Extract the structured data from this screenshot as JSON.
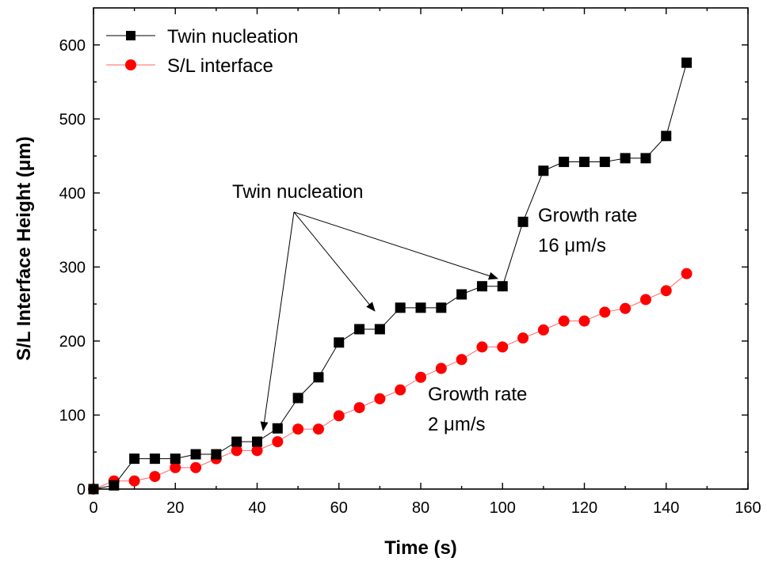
{
  "chart_data": {
    "type": "line",
    "xlabel": "Time (s)",
    "ylabel": "S/L Interface Height (μm)",
    "xlim": [
      0,
      160
    ],
    "ylim": [
      0,
      650
    ],
    "xticks": [
      0,
      20,
      40,
      60,
      80,
      100,
      120,
      140,
      160
    ],
    "yticks": [
      0,
      100,
      200,
      300,
      400,
      500,
      600
    ],
    "grid": false,
    "legend": "top-left",
    "series": [
      {
        "name": "Twin nucleation",
        "marker": "square",
        "color": "#000000",
        "x": [
          0,
          5,
          10,
          15,
          20,
          25,
          30,
          35,
          40,
          45,
          50,
          55,
          60,
          65,
          70,
          75,
          80,
          85,
          90,
          95,
          100,
          105,
          110,
          115,
          120,
          125,
          130,
          135,
          140,
          145
        ],
        "y": [
          0,
          5,
          41,
          41,
          41,
          47,
          47,
          64,
          64,
          82,
          123,
          151,
          198,
          216,
          216,
          245,
          245,
          245,
          263,
          274,
          274,
          361,
          430,
          442,
          442,
          442,
          447,
          447,
          477,
          576
        ]
      },
      {
        "name": "S/L interface",
        "marker": "circle",
        "color": "#ff0000",
        "x": [
          0,
          5,
          10,
          15,
          20,
          25,
          30,
          35,
          40,
          45,
          50,
          55,
          60,
          65,
          70,
          75,
          80,
          85,
          90,
          95,
          100,
          105,
          110,
          115,
          120,
          125,
          130,
          135,
          140,
          145
        ],
        "y": [
          0,
          11,
          11,
          17,
          29,
          29,
          41,
          52,
          52,
          64,
          81,
          81,
          99,
          110,
          122,
          134,
          151,
          163,
          175,
          192,
          192,
          204,
          215,
          227,
          227,
          239,
          244,
          256,
          268,
          291
        ]
      }
    ],
    "annotations": [
      {
        "id": "twin",
        "lines": [
          "Twin nucleation"
        ]
      },
      {
        "id": "growth16",
        "lines": [
          "Growth rate",
          "16 μm/s"
        ]
      },
      {
        "id": "growth2",
        "lines": [
          "Growth rate",
          "2 μm/s"
        ]
      }
    ]
  }
}
